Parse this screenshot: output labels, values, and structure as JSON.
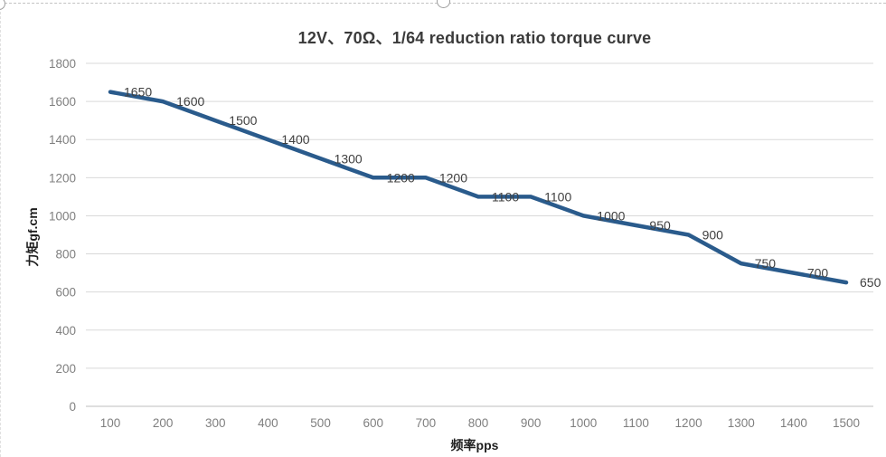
{
  "window": {
    "selection_border": "dashed",
    "handles": [
      "top-left-resize-handle",
      "top-center-resize-handle"
    ]
  },
  "chart_data": {
    "type": "line",
    "title": "12V、70Ω、1/64 reduction ratio torque curve",
    "xlabel": "频率pps",
    "ylabel": "力矩gf.cm",
    "x": [
      100,
      200,
      300,
      400,
      500,
      600,
      700,
      800,
      900,
      1000,
      1100,
      1200,
      1300,
      1400,
      1500
    ],
    "series": [
      {
        "name": "torque",
        "values": [
          1650,
          1600,
          1500,
          1400,
          1300,
          1200,
          1200,
          1100,
          1100,
          1000,
          950,
          900,
          750,
          700,
          650
        ],
        "data_labels": [
          "1650",
          "1600",
          "1500",
          "1400",
          "1300",
          "1200",
          "1200",
          "1100",
          "1100",
          "1000",
          "950",
          "900",
          "750",
          "700",
          "650"
        ]
      }
    ],
    "ylim": [
      0,
      1800
    ],
    "ytick_step": 200,
    "yticks": [
      0,
      200,
      400,
      600,
      800,
      1000,
      1200,
      1400,
      1600,
      1800
    ],
    "grid": "horizontal",
    "legend": "none",
    "markers": "none",
    "colors": {
      "line": "#2A5B8C",
      "grid": "#D9D9D9",
      "axis_line": "#C9C9C9",
      "tick_label": "#7F7F7F",
      "data_label": "#404040",
      "title": "#3B3B3B",
      "axis_title": "#1F1F1F"
    }
  }
}
